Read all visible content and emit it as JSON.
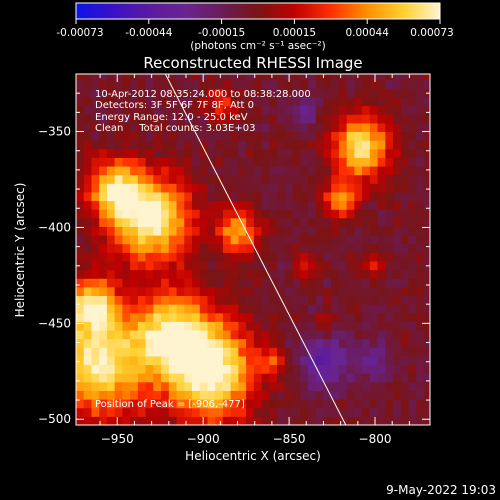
{
  "colorbar": {
    "ticks": [
      "-0.00073",
      "-0.00044",
      "-0.00015",
      "0.00015",
      "0.00044",
      "0.00073"
    ],
    "unit_label": "(photons cm⁻² s⁻¹ asec⁻²)",
    "colors": [
      "#0a14e6",
      "#3a10c8",
      "#5a1aa0",
      "#6a2490",
      "#6a1c58",
      "#7a1414",
      "#c00000",
      "#ff3000",
      "#ff9000",
      "#ffd030",
      "#fff4d0"
    ]
  },
  "chart_data": {
    "type": "heatmap",
    "title": "Reconstructed RHESSI Image",
    "xlabel": "Heliocentric X (arcsec)",
    "ylabel": "Heliocentric Y (arcsec)",
    "xlim": [
      -974,
      -768
    ],
    "ylim": [
      -503,
      -320
    ],
    "xticks": [
      -950,
      -900,
      -850,
      -800
    ],
    "yticks": [
      -350,
      -400,
      -450,
      -500
    ],
    "xtick_labels": [
      "−950",
      "−900",
      "−850",
      "−800"
    ],
    "ytick_labels": [
      "−350",
      "−400",
      "−450",
      "−500"
    ],
    "info_lines": [
      "10-Apr-2012 08:35:24.000 to 08:38:28.000",
      "Detectors: 3F 5F 6F 7F 8F, Att 0",
      "Energy Range: 12.0 - 25.0 keV",
      "Clean     Total counts: 3.03E+03"
    ],
    "peak_label": "Position of Peak = [-906,-477]",
    "peak_position": [
      -906,
      -477
    ],
    "limb_line": [
      [
        -922,
        -320
      ],
      [
        -817,
        -503
      ]
    ],
    "bright_regions": [
      {
        "x": -930,
        "y": -395,
        "radius": 22,
        "intensity": 1.0
      },
      {
        "x": -895,
        "y": -475,
        "radius": 25,
        "intensity": 1.0
      },
      {
        "x": -960,
        "y": -470,
        "radius": 28,
        "intensity": 0.9
      },
      {
        "x": -918,
        "y": -455,
        "radius": 22,
        "intensity": 0.8
      },
      {
        "x": -952,
        "y": -380,
        "radius": 16,
        "intensity": 0.75
      },
      {
        "x": -880,
        "y": -402,
        "radius": 12,
        "intensity": 0.65
      },
      {
        "x": -808,
        "y": -358,
        "radius": 16,
        "intensity": 0.9
      },
      {
        "x": -820,
        "y": -385,
        "radius": 10,
        "intensity": 0.6
      },
      {
        "x": -965,
        "y": -440,
        "radius": 14,
        "intensity": 0.7
      },
      {
        "x": -860,
        "y": -470,
        "radius": 7,
        "intensity": 0.4
      },
      {
        "x": -830,
        "y": -450,
        "radius": 5,
        "intensity": 0.3
      },
      {
        "x": -890,
        "y": -335,
        "radius": 8,
        "intensity": 0.4
      },
      {
        "x": -840,
        "y": -420,
        "radius": 6,
        "intensity": 0.3
      },
      {
        "x": -800,
        "y": -420,
        "radius": 7,
        "intensity": 0.35
      }
    ],
    "dark_regions": [
      {
        "x": -830,
        "y": -470,
        "radius": 14,
        "intensity": 0.7
      },
      {
        "x": -800,
        "y": -470,
        "radius": 10,
        "intensity": 0.5
      },
      {
        "x": -840,
        "y": -340,
        "radius": 8,
        "intensity": 0.4
      }
    ]
  },
  "footer": {
    "timestamp": "9-May-2022 19:03"
  }
}
